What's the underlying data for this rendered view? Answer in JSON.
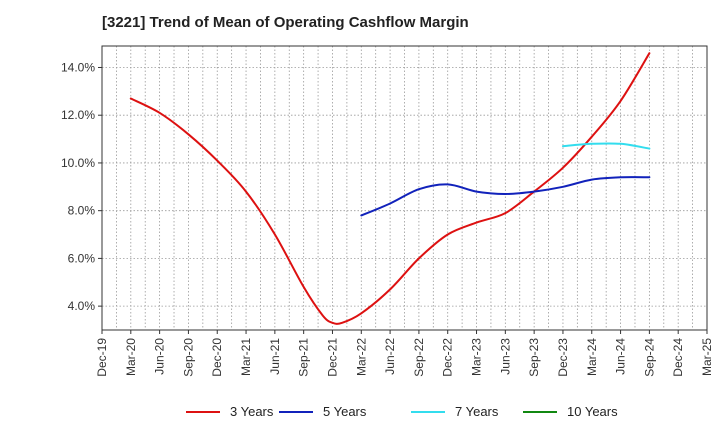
{
  "title": "[3221]  Trend of Mean of Operating Cashflow Margin",
  "chart_data": {
    "type": "line",
    "title": "[3221]  Trend of Mean of Operating Cashflow Margin",
    "xlabel": "",
    "ylabel": "",
    "x_tick_labels": [
      "Dec-19",
      "Mar-20",
      "Jun-20",
      "Sep-20",
      "Dec-20",
      "Mar-21",
      "Jun-21",
      "Sep-21",
      "Dec-21",
      "Mar-22",
      "Jun-22",
      "Sep-22",
      "Dec-22",
      "Mar-23",
      "Jun-23",
      "Sep-23",
      "Dec-23",
      "Mar-24",
      "Jun-24",
      "Sep-24",
      "Dec-24",
      "Mar-25"
    ],
    "y_ticks": [
      4.0,
      6.0,
      8.0,
      10.0,
      12.0,
      14.0
    ],
    "y_tick_labels": [
      "4.0%",
      "6.0%",
      "8.0%",
      "10.0%",
      "12.0%",
      "14.0%"
    ],
    "ylim": [
      3.0,
      14.9
    ],
    "grid": true,
    "legend_position": "bottom",
    "series": [
      {
        "name": "3 Years",
        "color": "#dd1111",
        "x": [
          "Mar-20",
          "Jun-20",
          "Sep-20",
          "Dec-20",
          "Mar-21",
          "Jun-21",
          "Sep-21",
          "Nov-21",
          "Dec-21",
          "Jan-22",
          "Mar-22",
          "Jun-22",
          "Sep-22",
          "Dec-22",
          "Mar-23",
          "Jun-23",
          "Sep-23",
          "Dec-23",
          "Mar-24",
          "Jun-24",
          "Sep-24"
        ],
        "values": [
          12.7,
          12.1,
          11.2,
          10.1,
          8.8,
          7.0,
          4.8,
          3.6,
          3.3,
          3.3,
          3.7,
          4.7,
          6.0,
          7.0,
          7.5,
          7.9,
          8.8,
          9.8,
          11.1,
          12.6,
          14.6
        ]
      },
      {
        "name": "5 Years",
        "color": "#1122bb",
        "x": [
          "Mar-22",
          "Jun-22",
          "Sep-22",
          "Dec-22",
          "Mar-23",
          "Jun-23",
          "Sep-23",
          "Dec-23",
          "Mar-24",
          "Jun-24",
          "Sep-24"
        ],
        "values": [
          7.8,
          8.3,
          8.9,
          9.1,
          8.8,
          8.7,
          8.8,
          9.0,
          9.3,
          9.4,
          9.4
        ]
      },
      {
        "name": "7 Years",
        "color": "#33ddee",
        "x": [
          "Dec-23",
          "Mar-24",
          "Jun-24",
          "Sep-24"
        ],
        "values": [
          10.7,
          10.8,
          10.8,
          10.6
        ]
      },
      {
        "name": "10 Years",
        "color": "#118811",
        "x": [],
        "values": []
      }
    ]
  }
}
